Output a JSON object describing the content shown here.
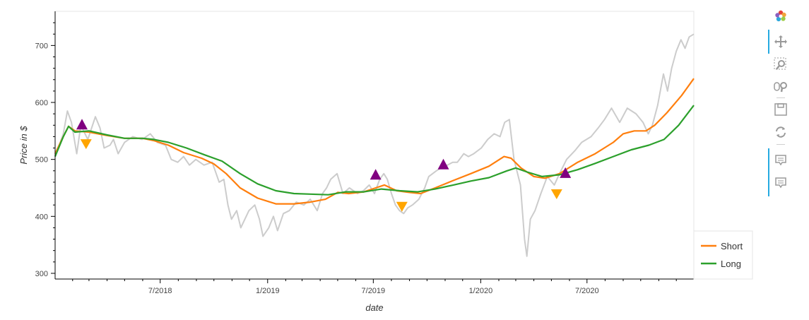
{
  "chart_data": {
    "type": "line",
    "title": "",
    "xlabel": "date",
    "ylabel": "Price in $",
    "x_range": [
      "2018-01-02",
      "2020-12-31"
    ],
    "ylim": [
      290,
      760
    ],
    "y_ticks": [
      300,
      400,
      500,
      600,
      700
    ],
    "x_ticks": [
      {
        "date": "2018-07-01",
        "label": "7/2018"
      },
      {
        "date": "2019-01-01",
        "label": "1/2019"
      },
      {
        "date": "2019-07-01",
        "label": "7/2019"
      },
      {
        "date": "2020-01-01",
        "label": "1/2020"
      },
      {
        "date": "2020-07-01",
        "label": "7/2020"
      }
    ],
    "grid": false,
    "legend_position": "bottom-right",
    "series": [
      {
        "name": "",
        "color": "#cccccc",
        "points": [
          [
            "2018-01-02",
            505
          ],
          [
            "2018-01-16",
            545
          ],
          [
            "2018-01-23",
            585
          ],
          [
            "2018-01-30",
            565
          ],
          [
            "2018-02-08",
            510
          ],
          [
            "2018-02-15",
            560
          ],
          [
            "2018-02-27",
            535
          ],
          [
            "2018-03-12",
            575
          ],
          [
            "2018-03-20",
            555
          ],
          [
            "2018-03-27",
            520
          ],
          [
            "2018-04-06",
            525
          ],
          [
            "2018-04-12",
            535
          ],
          [
            "2018-04-20",
            510
          ],
          [
            "2018-05-01",
            530
          ],
          [
            "2018-05-15",
            540
          ],
          [
            "2018-05-31",
            535
          ],
          [
            "2018-06-14",
            545
          ],
          [
            "2018-06-26",
            530
          ],
          [
            "2018-07-10",
            525
          ],
          [
            "2018-07-20",
            500
          ],
          [
            "2018-07-31",
            495
          ],
          [
            "2018-08-10",
            505
          ],
          [
            "2018-08-20",
            490
          ],
          [
            "2018-08-31",
            500
          ],
          [
            "2018-09-14",
            490
          ],
          [
            "2018-09-28",
            495
          ],
          [
            "2018-10-10",
            460
          ],
          [
            "2018-10-18",
            465
          ],
          [
            "2018-10-25",
            420
          ],
          [
            "2018-10-31",
            395
          ],
          [
            "2018-11-09",
            410
          ],
          [
            "2018-11-16",
            380
          ],
          [
            "2018-11-30",
            410
          ],
          [
            "2018-12-10",
            420
          ],
          [
            "2018-12-18",
            395
          ],
          [
            "2018-12-24",
            365
          ],
          [
            "2019-01-03",
            380
          ],
          [
            "2019-01-11",
            400
          ],
          [
            "2019-01-18",
            375
          ],
          [
            "2019-01-28",
            405
          ],
          [
            "2019-02-07",
            410
          ],
          [
            "2019-02-19",
            425
          ],
          [
            "2019-03-04",
            420
          ],
          [
            "2019-03-15",
            430
          ],
          [
            "2019-03-27",
            410
          ],
          [
            "2019-04-05",
            440
          ],
          [
            "2019-04-12",
            450
          ],
          [
            "2019-04-19",
            465
          ],
          [
            "2019-04-30",
            475
          ],
          [
            "2019-05-10",
            440
          ],
          [
            "2019-05-21",
            450
          ],
          [
            "2019-06-04",
            440
          ],
          [
            "2019-06-14",
            445
          ],
          [
            "2019-06-24",
            455
          ],
          [
            "2019-07-03",
            440
          ],
          [
            "2019-07-12",
            465
          ],
          [
            "2019-07-19",
            475
          ],
          [
            "2019-07-25",
            465
          ],
          [
            "2019-08-01",
            440
          ],
          [
            "2019-08-08",
            420
          ],
          [
            "2019-08-15",
            410
          ],
          [
            "2019-08-22",
            405
          ],
          [
            "2019-08-29",
            415
          ],
          [
            "2019-09-06",
            420
          ],
          [
            "2019-09-17",
            430
          ],
          [
            "2019-09-27",
            450
          ],
          [
            "2019-10-04",
            470
          ],
          [
            "2019-10-17",
            480
          ],
          [
            "2019-10-25",
            485
          ],
          [
            "2019-11-05",
            490
          ],
          [
            "2019-11-14",
            495
          ],
          [
            "2019-11-22",
            495
          ],
          [
            "2019-12-03",
            510
          ],
          [
            "2019-12-11",
            505
          ],
          [
            "2019-12-20",
            510
          ],
          [
            "2020-01-02",
            520
          ],
          [
            "2020-01-13",
            535
          ],
          [
            "2020-01-24",
            545
          ],
          [
            "2020-02-03",
            540
          ],
          [
            "2020-02-11",
            565
          ],
          [
            "2020-02-19",
            570
          ],
          [
            "2020-02-27",
            500
          ],
          [
            "2020-03-09",
            455
          ],
          [
            "2020-03-16",
            360
          ],
          [
            "2020-03-20",
            330
          ],
          [
            "2020-03-26",
            395
          ],
          [
            "2020-04-03",
            410
          ],
          [
            "2020-04-13",
            440
          ],
          [
            "2020-04-24",
            470
          ],
          [
            "2020-05-06",
            455
          ],
          [
            "2020-05-15",
            475
          ],
          [
            "2020-05-27",
            500
          ],
          [
            "2020-06-10",
            515
          ],
          [
            "2020-06-22",
            530
          ],
          [
            "2020-07-08",
            540
          ],
          [
            "2020-07-20",
            555
          ],
          [
            "2020-07-31",
            570
          ],
          [
            "2020-08-12",
            590
          ],
          [
            "2020-08-26",
            565
          ],
          [
            "2020-09-08",
            590
          ],
          [
            "2020-09-23",
            580
          ],
          [
            "2020-10-05",
            565
          ],
          [
            "2020-10-14",
            545
          ],
          [
            "2020-10-21",
            560
          ],
          [
            "2020-10-30",
            595
          ],
          [
            "2020-11-09",
            650
          ],
          [
            "2020-11-16",
            620
          ],
          [
            "2020-11-23",
            660
          ],
          [
            "2020-12-01",
            690
          ],
          [
            "2020-12-09",
            710
          ],
          [
            "2020-12-16",
            695
          ],
          [
            "2020-12-23",
            715
          ],
          [
            "2020-12-31",
            720
          ]
        ]
      },
      {
        "name": "Short",
        "color": "#ff7f0e",
        "points": [
          [
            "2018-01-02",
            510
          ],
          [
            "2018-01-16",
            540
          ],
          [
            "2018-01-25",
            558
          ],
          [
            "2018-02-05",
            550
          ],
          [
            "2018-03-01",
            548
          ],
          [
            "2018-04-01",
            542
          ],
          [
            "2018-05-01",
            537
          ],
          [
            "2018-06-01",
            537
          ],
          [
            "2018-06-20",
            533
          ],
          [
            "2018-07-15",
            525
          ],
          [
            "2018-08-10",
            512
          ],
          [
            "2018-09-10",
            502
          ],
          [
            "2018-10-01",
            492
          ],
          [
            "2018-10-22",
            475
          ],
          [
            "2018-11-15",
            450
          ],
          [
            "2018-12-15",
            432
          ],
          [
            "2019-01-15",
            422
          ],
          [
            "2019-02-15",
            422
          ],
          [
            "2019-03-15",
            425
          ],
          [
            "2019-04-10",
            430
          ],
          [
            "2019-05-01",
            442
          ],
          [
            "2019-05-20",
            440
          ],
          [
            "2019-06-15",
            443
          ],
          [
            "2019-07-05",
            450
          ],
          [
            "2019-07-20",
            455
          ],
          [
            "2019-08-10",
            445
          ],
          [
            "2019-09-01",
            442
          ],
          [
            "2019-09-20",
            440
          ],
          [
            "2019-10-15",
            450
          ],
          [
            "2019-11-15",
            463
          ],
          [
            "2019-12-15",
            475
          ],
          [
            "2020-01-15",
            488
          ],
          [
            "2020-02-10",
            505
          ],
          [
            "2020-02-22",
            502
          ],
          [
            "2020-03-10",
            485
          ],
          [
            "2020-04-01",
            470
          ],
          [
            "2020-04-20",
            467
          ],
          [
            "2020-05-15",
            475
          ],
          [
            "2020-06-15",
            495
          ],
          [
            "2020-07-15",
            510
          ],
          [
            "2020-08-15",
            530
          ],
          [
            "2020-09-01",
            545
          ],
          [
            "2020-09-20",
            550
          ],
          [
            "2020-10-10",
            550
          ],
          [
            "2020-10-25",
            560
          ],
          [
            "2020-11-15",
            582
          ],
          [
            "2020-12-10",
            612
          ],
          [
            "2020-12-31",
            642
          ]
        ]
      },
      {
        "name": "Long",
        "color": "#2ca02c",
        "points": [
          [
            "2018-01-02",
            505
          ],
          [
            "2018-01-16",
            540
          ],
          [
            "2018-01-25",
            558
          ],
          [
            "2018-02-05",
            548
          ],
          [
            "2018-03-01",
            550
          ],
          [
            "2018-04-01",
            543
          ],
          [
            "2018-05-01",
            537
          ],
          [
            "2018-06-01",
            537
          ],
          [
            "2018-06-20",
            535
          ],
          [
            "2018-07-15",
            530
          ],
          [
            "2018-08-15",
            520
          ],
          [
            "2018-09-15",
            508
          ],
          [
            "2018-10-15",
            497
          ],
          [
            "2018-11-15",
            475
          ],
          [
            "2018-12-15",
            457
          ],
          [
            "2019-01-15",
            445
          ],
          [
            "2019-02-15",
            440
          ],
          [
            "2019-03-15",
            439
          ],
          [
            "2019-04-15",
            438
          ],
          [
            "2019-05-15",
            443
          ],
          [
            "2019-06-15",
            443
          ],
          [
            "2019-07-15",
            448
          ],
          [
            "2019-08-15",
            445
          ],
          [
            "2019-09-15",
            443
          ],
          [
            "2019-10-15",
            448
          ],
          [
            "2019-11-15",
            455
          ],
          [
            "2019-12-15",
            462
          ],
          [
            "2020-01-15",
            468
          ],
          [
            "2020-02-15",
            480
          ],
          [
            "2020-03-01",
            485
          ],
          [
            "2020-03-20",
            478
          ],
          [
            "2020-04-15",
            470
          ],
          [
            "2020-05-15",
            473
          ],
          [
            "2020-06-15",
            482
          ],
          [
            "2020-07-15",
            493
          ],
          [
            "2020-08-15",
            505
          ],
          [
            "2020-09-15",
            517
          ],
          [
            "2020-10-15",
            525
          ],
          [
            "2020-11-10",
            535
          ],
          [
            "2020-12-05",
            560
          ],
          [
            "2020-12-31",
            595
          ]
        ]
      }
    ],
    "buy_signals": {
      "color": "#800080",
      "marker": "triangle-up",
      "points": [
        [
          "2018-02-17",
          560
        ],
        [
          "2019-07-05",
          472
        ],
        [
          "2019-10-29",
          490
        ],
        [
          "2020-05-25",
          475
        ]
      ]
    },
    "sell_signals": {
      "color": "#ffa500",
      "marker": "triangle-down",
      "points": [
        [
          "2018-02-24",
          528
        ],
        [
          "2019-08-19",
          418
        ],
        [
          "2020-05-10",
          440
        ]
      ]
    },
    "legend": [
      {
        "label": "Short",
        "color": "#ff7f0e"
      },
      {
        "label": "Long",
        "color": "#2ca02c"
      }
    ]
  },
  "toolbar": {
    "tools": [
      {
        "name": "bokeh-logo-icon",
        "active": false
      },
      {
        "name": "pan-icon",
        "active": true
      },
      {
        "name": "box-zoom-icon",
        "active": false
      },
      {
        "name": "wheel-zoom-icon",
        "active": false
      },
      {
        "name": "save-icon",
        "active": false
      },
      {
        "name": "reset-icon",
        "active": false
      },
      {
        "name": "hover-icon",
        "active": true
      },
      {
        "name": "hover-icon",
        "active": true
      }
    ]
  }
}
